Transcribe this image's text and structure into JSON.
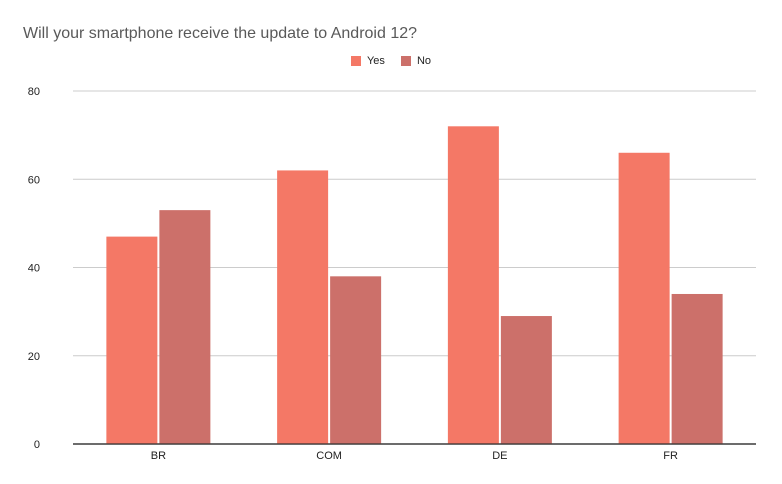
{
  "chart_data": {
    "type": "bar",
    "title": "Will your smartphone receive the update to Android 12?",
    "categories": [
      "BR",
      "COM",
      "DE",
      "FR"
    ],
    "series": [
      {
        "name": "Yes",
        "values": [
          47,
          62,
          72,
          66
        ],
        "color": "#f47866"
      },
      {
        "name": "No",
        "values": [
          53,
          38,
          29,
          34
        ],
        "color": "#cc706a"
      }
    ],
    "ylim": [
      0,
      80
    ],
    "yticks": [
      "0",
      "20",
      "40",
      "60",
      "80"
    ],
    "grid": true,
    "legend_position": "top-center"
  }
}
